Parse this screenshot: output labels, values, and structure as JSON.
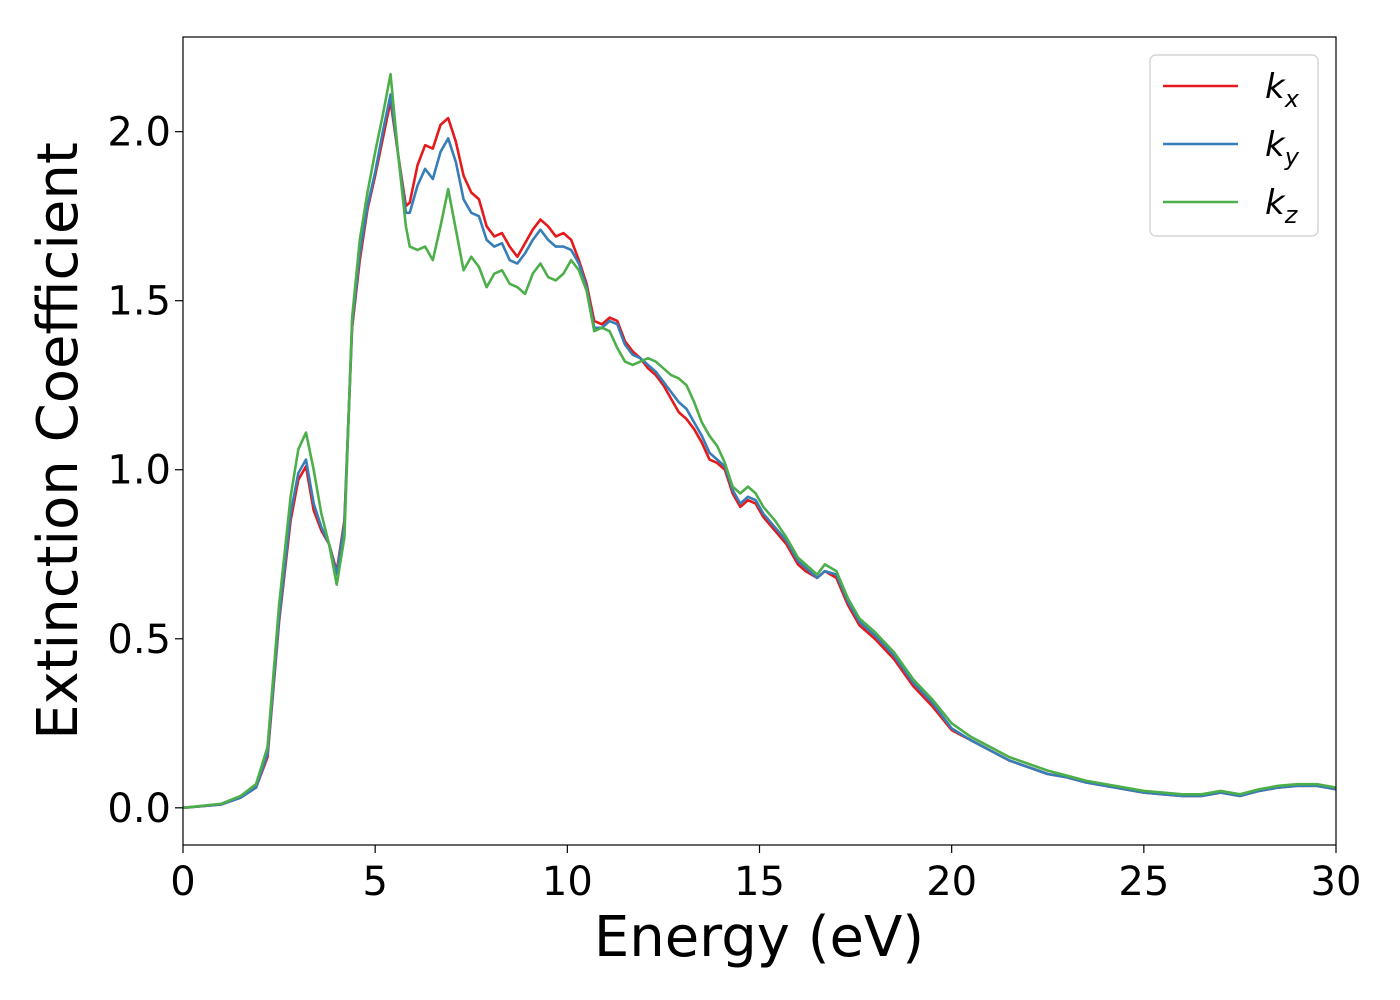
{
  "chart_data": {
    "type": "line",
    "xlabel": "Energy (eV)",
    "ylabel": "Extinction Coefficient",
    "xlim": [
      0,
      30
    ],
    "ylim": [
      -0.11,
      2.28
    ],
    "xticks": [
      0,
      5,
      10,
      15,
      20,
      25,
      30
    ],
    "yticks": [
      0.0,
      0.5,
      1.0,
      1.5,
      2.0
    ],
    "xtick_labels": [
      "0",
      "5",
      "10",
      "15",
      "20",
      "25",
      "30"
    ],
    "ytick_labels": [
      "0.0",
      "0.5",
      "1.0",
      "1.5",
      "2.0"
    ],
    "grid": false,
    "legend_position": "top-right",
    "series": [
      {
        "name": "k",
        "subscript": "x",
        "color": "#e41a1c",
        "x": [
          0,
          1,
          1.5,
          1.9,
          2.2,
          2.5,
          2.8,
          3.0,
          3.2,
          3.4,
          3.6,
          3.8,
          4.0,
          4.2,
          4.4,
          4.6,
          4.8,
          5.0,
          5.2,
          5.4,
          5.6,
          5.8,
          5.9,
          6.1,
          6.3,
          6.5,
          6.7,
          6.9,
          7.1,
          7.3,
          7.5,
          7.7,
          7.9,
          8.1,
          8.3,
          8.5,
          8.7,
          8.9,
          9.1,
          9.3,
          9.5,
          9.7,
          9.9,
          10.1,
          10.3,
          10.5,
          10.7,
          10.9,
          11.1,
          11.3,
          11.5,
          11.7,
          11.9,
          12.1,
          12.3,
          12.5,
          12.7,
          12.9,
          13.1,
          13.3,
          13.5,
          13.7,
          13.9,
          14.1,
          14.3,
          14.5,
          14.7,
          14.9,
          15.1,
          15.4,
          15.7,
          16.0,
          16.2,
          16.5,
          16.7,
          17.0,
          17.3,
          17.6,
          18.0,
          18.5,
          19.0,
          19.5,
          20.0,
          20.5,
          21.0,
          21.5,
          22.0,
          22.5,
          23.0,
          23.5,
          24.0,
          24.5,
          25.0,
          25.5,
          26.0,
          26.5,
          27.0,
          27.5,
          28.0,
          28.5,
          29.0,
          29.5,
          30.0
        ],
        "y": [
          0.0,
          0.01,
          0.03,
          0.06,
          0.15,
          0.55,
          0.85,
          0.97,
          1.01,
          0.88,
          0.82,
          0.78,
          0.7,
          0.85,
          1.42,
          1.62,
          1.77,
          1.87,
          1.98,
          2.09,
          1.93,
          1.78,
          1.79,
          1.9,
          1.96,
          1.95,
          2.02,
          2.04,
          1.97,
          1.87,
          1.82,
          1.8,
          1.72,
          1.69,
          1.7,
          1.66,
          1.63,
          1.67,
          1.71,
          1.74,
          1.72,
          1.69,
          1.7,
          1.68,
          1.62,
          1.55,
          1.44,
          1.43,
          1.45,
          1.44,
          1.38,
          1.35,
          1.33,
          1.3,
          1.28,
          1.25,
          1.21,
          1.17,
          1.15,
          1.12,
          1.08,
          1.03,
          1.02,
          1.0,
          0.93,
          0.89,
          0.91,
          0.9,
          0.86,
          0.82,
          0.78,
          0.72,
          0.7,
          0.68,
          0.7,
          0.68,
          0.6,
          0.54,
          0.5,
          0.44,
          0.36,
          0.3,
          0.23,
          0.2,
          0.17,
          0.14,
          0.12,
          0.1,
          0.09,
          0.075,
          0.065,
          0.055,
          0.045,
          0.04,
          0.035,
          0.035,
          0.045,
          0.035,
          0.05,
          0.06,
          0.065,
          0.065,
          0.055
        ]
      },
      {
        "name": "k",
        "subscript": "y",
        "color": "#377eb8",
        "x": [
          0,
          1,
          1.5,
          1.9,
          2.2,
          2.5,
          2.8,
          3.0,
          3.2,
          3.4,
          3.6,
          3.8,
          4.0,
          4.2,
          4.4,
          4.6,
          4.8,
          5.0,
          5.2,
          5.4,
          5.6,
          5.8,
          5.9,
          6.1,
          6.3,
          6.5,
          6.7,
          6.9,
          7.1,
          7.3,
          7.5,
          7.7,
          7.9,
          8.1,
          8.3,
          8.5,
          8.7,
          8.9,
          9.1,
          9.3,
          9.5,
          9.7,
          9.9,
          10.1,
          10.3,
          10.5,
          10.7,
          10.9,
          11.1,
          11.3,
          11.5,
          11.7,
          11.9,
          12.1,
          12.3,
          12.5,
          12.7,
          12.9,
          13.1,
          13.3,
          13.5,
          13.7,
          13.9,
          14.1,
          14.3,
          14.5,
          14.7,
          14.9,
          15.1,
          15.4,
          15.7,
          16.0,
          16.2,
          16.5,
          16.7,
          17.0,
          17.3,
          17.6,
          18.0,
          18.5,
          19.0,
          19.5,
          20.0,
          20.5,
          21.0,
          21.5,
          22.0,
          22.5,
          23.0,
          23.5,
          24.0,
          24.5,
          25.0,
          25.5,
          26.0,
          26.5,
          27.0,
          27.5,
          28.0,
          28.5,
          29.0,
          29.5,
          30.0
        ],
        "y": [
          0.0,
          0.01,
          0.03,
          0.06,
          0.16,
          0.56,
          0.87,
          0.99,
          1.03,
          0.9,
          0.83,
          0.78,
          0.69,
          0.84,
          1.43,
          1.64,
          1.78,
          1.88,
          2.0,
          2.11,
          1.93,
          1.76,
          1.76,
          1.84,
          1.89,
          1.86,
          1.94,
          1.98,
          1.91,
          1.8,
          1.76,
          1.75,
          1.68,
          1.66,
          1.67,
          1.62,
          1.61,
          1.64,
          1.68,
          1.71,
          1.68,
          1.66,
          1.66,
          1.65,
          1.61,
          1.54,
          1.42,
          1.42,
          1.44,
          1.43,
          1.37,
          1.34,
          1.33,
          1.31,
          1.29,
          1.26,
          1.23,
          1.2,
          1.18,
          1.14,
          1.1,
          1.05,
          1.03,
          1.01,
          0.94,
          0.9,
          0.92,
          0.91,
          0.87,
          0.83,
          0.79,
          0.73,
          0.71,
          0.68,
          0.7,
          0.69,
          0.61,
          0.55,
          0.51,
          0.45,
          0.37,
          0.31,
          0.235,
          0.2,
          0.17,
          0.14,
          0.12,
          0.1,
          0.09,
          0.075,
          0.065,
          0.055,
          0.045,
          0.04,
          0.035,
          0.035,
          0.045,
          0.035,
          0.05,
          0.06,
          0.065,
          0.065,
          0.055
        ]
      },
      {
        "name": "k",
        "subscript": "z",
        "color": "#4daf4a",
        "x": [
          0,
          1,
          1.5,
          1.9,
          2.2,
          2.5,
          2.8,
          3.0,
          3.2,
          3.4,
          3.6,
          3.8,
          4.0,
          4.2,
          4.4,
          4.6,
          4.8,
          5.0,
          5.2,
          5.4,
          5.6,
          5.8,
          5.9,
          6.1,
          6.3,
          6.5,
          6.7,
          6.9,
          7.1,
          7.3,
          7.5,
          7.7,
          7.9,
          8.1,
          8.3,
          8.5,
          8.7,
          8.9,
          9.1,
          9.3,
          9.5,
          9.7,
          9.9,
          10.1,
          10.3,
          10.5,
          10.7,
          10.9,
          11.1,
          11.3,
          11.5,
          11.7,
          11.9,
          12.1,
          12.3,
          12.5,
          12.7,
          12.9,
          13.1,
          13.3,
          13.5,
          13.7,
          13.9,
          14.1,
          14.3,
          14.5,
          14.7,
          14.9,
          15.1,
          15.4,
          15.7,
          16.0,
          16.2,
          16.5,
          16.7,
          17.0,
          17.3,
          17.6,
          18.0,
          18.5,
          19.0,
          19.5,
          20.0,
          20.5,
          21.0,
          21.5,
          22.0,
          22.5,
          23.0,
          23.5,
          24.0,
          24.5,
          25.0,
          25.5,
          26.0,
          26.5,
          27.0,
          27.5,
          28.0,
          28.5,
          29.0,
          29.5,
          30.0
        ],
        "y": [
          0.0,
          0.012,
          0.035,
          0.07,
          0.18,
          0.6,
          0.92,
          1.06,
          1.11,
          1.0,
          0.87,
          0.78,
          0.66,
          0.8,
          1.45,
          1.68,
          1.82,
          1.94,
          2.05,
          2.17,
          1.93,
          1.72,
          1.66,
          1.65,
          1.66,
          1.62,
          1.72,
          1.83,
          1.71,
          1.59,
          1.63,
          1.6,
          1.54,
          1.58,
          1.59,
          1.55,
          1.54,
          1.52,
          1.58,
          1.61,
          1.57,
          1.56,
          1.58,
          1.62,
          1.59,
          1.53,
          1.41,
          1.42,
          1.41,
          1.36,
          1.32,
          1.31,
          1.32,
          1.33,
          1.32,
          1.3,
          1.28,
          1.27,
          1.25,
          1.2,
          1.14,
          1.1,
          1.07,
          1.02,
          0.95,
          0.93,
          0.95,
          0.93,
          0.89,
          0.85,
          0.8,
          0.74,
          0.72,
          0.69,
          0.72,
          0.7,
          0.62,
          0.56,
          0.52,
          0.46,
          0.38,
          0.32,
          0.25,
          0.21,
          0.18,
          0.15,
          0.13,
          0.11,
          0.095,
          0.08,
          0.07,
          0.06,
          0.05,
          0.045,
          0.04,
          0.04,
          0.05,
          0.04,
          0.055,
          0.065,
          0.07,
          0.07,
          0.06
        ]
      }
    ]
  }
}
